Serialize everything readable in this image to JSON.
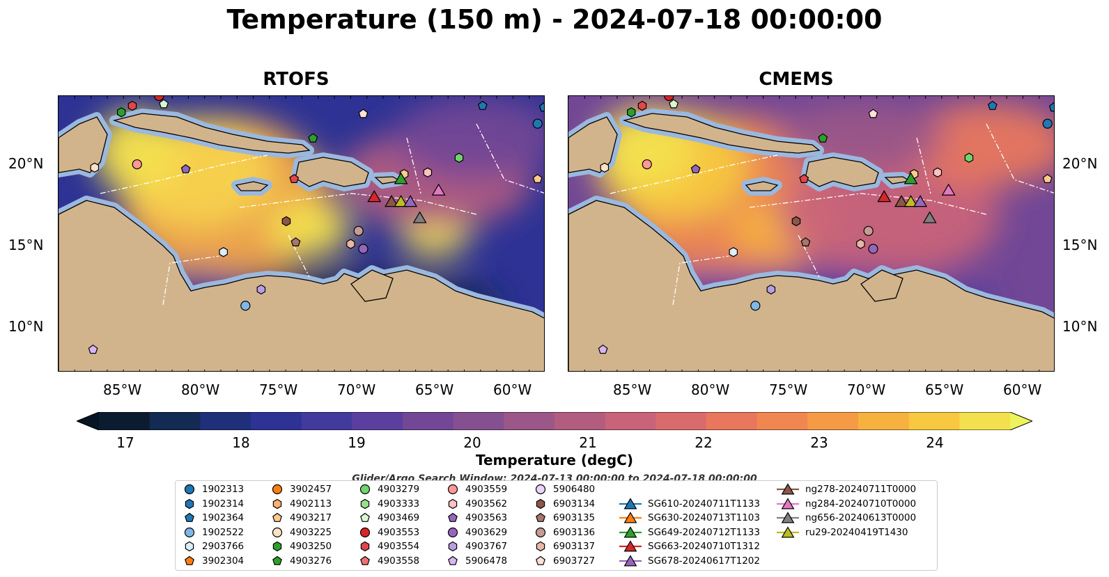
{
  "title": "Temperature (150 m) - 2024-07-18 00:00:00",
  "panels": [
    {
      "title": "RTOFS"
    },
    {
      "title": "CMEMS"
    }
  ],
  "axes": {
    "x_ticks": [
      "85°W",
      "80°W",
      "75°W",
      "70°W",
      "65°W",
      "60°W"
    ],
    "y_ticks": [
      "20°N",
      "15°N",
      "10°N"
    ]
  },
  "colorbar": {
    "label": "Temperature (degC)",
    "ticks": [
      "17",
      "18",
      "19",
      "20",
      "21",
      "22",
      "23",
      "24"
    ],
    "range": [
      16.5,
      24.5
    ],
    "colors": [
      "#0b1c30",
      "#132a52",
      "#1f2f7a",
      "#2d3294",
      "#433a9e",
      "#5a3f9f",
      "#714796",
      "#85508f",
      "#9b5788",
      "#b25d7f",
      "#c8637a",
      "#da6b6c",
      "#e8775e",
      "#f08751",
      "#f59b46",
      "#f7b13f",
      "#f7c840",
      "#f3e04e"
    ],
    "extend_low": "#061424",
    "extend_high": "#eef25c"
  },
  "search_window": "Glider/Argo Search Window: 2024-07-13 00:00:00 to 2024-07-18 00:00:00",
  "legend": {
    "floats": [
      {
        "id": "1902313",
        "color": "#1f77b4",
        "marker": "circle"
      },
      {
        "id": "1902314",
        "color": "#1f77b4",
        "marker": "hexagon"
      },
      {
        "id": "1902364",
        "color": "#1f77b4",
        "marker": "pentagon"
      },
      {
        "id": "1902522",
        "color": "#7fb8e6",
        "marker": "circle"
      },
      {
        "id": "2903766",
        "color": "#dbeefa",
        "marker": "hexagon"
      },
      {
        "id": "3902304",
        "color": "#ff7f0e",
        "marker": "pentagon"
      },
      {
        "id": "3902457",
        "color": "#ff7f0e",
        "marker": "circle"
      },
      {
        "id": "4902113",
        "color": "#ffb06b",
        "marker": "hexagon"
      },
      {
        "id": "4903217",
        "color": "#ffc98f",
        "marker": "pentagon"
      },
      {
        "id": "4903225",
        "color": "#ffe2c4",
        "marker": "circle"
      },
      {
        "id": "4903250",
        "color": "#2ca02c",
        "marker": "hexagon"
      },
      {
        "id": "4903276",
        "color": "#2ca02c",
        "marker": "pentagon"
      },
      {
        "id": "4903279",
        "color": "#6fd56f",
        "marker": "circle"
      },
      {
        "id": "4903333",
        "color": "#98df8a",
        "marker": "hexagon"
      },
      {
        "id": "4903469",
        "color": "#d9f5d0",
        "marker": "pentagon"
      },
      {
        "id": "4903553",
        "color": "#d62728",
        "marker": "circle"
      },
      {
        "id": "4903554",
        "color": "#e0474a",
        "marker": "hexagon"
      },
      {
        "id": "4903558",
        "color": "#f07070",
        "marker": "pentagon"
      },
      {
        "id": "4903559",
        "color": "#ff9896",
        "marker": "circle"
      },
      {
        "id": "4903562",
        "color": "#ffc2c0",
        "marker": "hexagon"
      },
      {
        "id": "4903563",
        "color": "#9467bd",
        "marker": "pentagon"
      },
      {
        "id": "4903629",
        "color": "#9467bd",
        "marker": "circle"
      },
      {
        "id": "4903767",
        "color": "#b89ee0",
        "marker": "hexagon"
      },
      {
        "id": "5906478",
        "color": "#d7b5f0",
        "marker": "pentagon"
      },
      {
        "id": "5906480",
        "color": "#e9d4f7",
        "marker": "circle"
      },
      {
        "id": "6903134",
        "color": "#8c564b",
        "marker": "hexagon"
      },
      {
        "id": "6903135",
        "color": "#a8766b",
        "marker": "pentagon"
      },
      {
        "id": "6903136",
        "color": "#c49c94",
        "marker": "circle"
      },
      {
        "id": "6903137",
        "color": "#e8b7a8",
        "marker": "hexagon"
      },
      {
        "id": "6903727",
        "color": "#fde0d6",
        "marker": "pentagon"
      }
    ],
    "gliders": [
      {
        "id": "SG610-20240711T1133",
        "color": "#1f77b4"
      },
      {
        "id": "SG630-20240713T1103",
        "color": "#ff7f0e"
      },
      {
        "id": "SG649-20240712T1133",
        "color": "#2ca02c"
      },
      {
        "id": "SG663-20240710T1312",
        "color": "#d62728"
      },
      {
        "id": "SG678-20240617T1202",
        "color": "#9467bd"
      },
      {
        "id": "ng278-20240711T0000",
        "color": "#8c564b"
      },
      {
        "id": "ng284-20240710T0000",
        "color": "#e377c2"
      },
      {
        "id": "ng656-20240613T0000",
        "color": "#7f7f7f"
      },
      {
        "id": "ru29-20240419T1430",
        "color": "#bcbd22"
      }
    ]
  },
  "map_extent": {
    "lon": [
      -89,
      -58
    ],
    "lat": [
      7,
      24
    ]
  },
  "markers": [
    {
      "lon": -85,
      "lat": 23.0,
      "color": "#2ca02c",
      "shape": "hexagon"
    },
    {
      "lon": -84.3,
      "lat": 23.4,
      "color": "#e0474a",
      "shape": "hexagon"
    },
    {
      "lon": -82.6,
      "lat": 24.0,
      "color": "#d62728",
      "shape": "circle"
    },
    {
      "lon": -82.3,
      "lat": 23.5,
      "color": "#d9f5d0",
      "shape": "pentagon"
    },
    {
      "lon": -72.8,
      "lat": 21.4,
      "color": "#2ca02c",
      "shape": "pentagon"
    },
    {
      "lon": -69.6,
      "lat": 22.9,
      "color": "#fde0d6",
      "shape": "pentagon"
    },
    {
      "lon": -62.0,
      "lat": 23.4,
      "color": "#1f77b4",
      "shape": "pentagon"
    },
    {
      "lon": -58.5,
      "lat": 22.3,
      "color": "#1f77b4",
      "shape": "circle"
    },
    {
      "lon": -58.1,
      "lat": 23.3,
      "color": "#1f77b4",
      "shape": "pentagon"
    },
    {
      "lon": -86.7,
      "lat": 19.6,
      "color": "#ffe2c4",
      "shape": "hexagon"
    },
    {
      "lon": -84.0,
      "lat": 19.8,
      "color": "#ff9896",
      "shape": "circle"
    },
    {
      "lon": -80.9,
      "lat": 19.5,
      "color": "#9467bd",
      "shape": "pentagon"
    },
    {
      "lon": -63.5,
      "lat": 20.2,
      "color": "#6fd56f",
      "shape": "hexagon"
    },
    {
      "lon": -58.5,
      "lat": 18.9,
      "color": "#ffc98f",
      "shape": "pentagon"
    },
    {
      "lon": -67.0,
      "lat": 19.2,
      "color": "#ffc98f",
      "shape": "hexagon"
    },
    {
      "lon": -65.5,
      "lat": 19.3,
      "color": "#ffc2c0",
      "shape": "hexagon"
    },
    {
      "lon": -74.0,
      "lat": 18.9,
      "color": "#e0474a",
      "shape": "pentagon"
    },
    {
      "lon": -74.5,
      "lat": 16.3,
      "color": "#8c564b",
      "shape": "hexagon"
    },
    {
      "lon": -73.9,
      "lat": 15.0,
      "color": "#a8766b",
      "shape": "pentagon"
    },
    {
      "lon": -78.5,
      "lat": 14.4,
      "color": "#dbeefa",
      "shape": "hexagon"
    },
    {
      "lon": -69.9,
      "lat": 15.7,
      "color": "#c49c94",
      "shape": "circle"
    },
    {
      "lon": -70.4,
      "lat": 14.9,
      "color": "#e8b7a8",
      "shape": "hexagon"
    },
    {
      "lon": -69.6,
      "lat": 14.6,
      "color": "#9467bd",
      "shape": "circle"
    },
    {
      "lon": -76.1,
      "lat": 12.1,
      "color": "#b89ee0",
      "shape": "hexagon"
    },
    {
      "lon": -77.1,
      "lat": 11.1,
      "color": "#7fb8e6",
      "shape": "circle"
    },
    {
      "lon": -86.8,
      "lat": 8.4,
      "color": "#d7b5f0",
      "shape": "pentagon"
    }
  ],
  "gliders_on_map": [
    {
      "lon": -67.2,
      "lat": 18.9,
      "color": "#2ca02c"
    },
    {
      "lon": -68.9,
      "lat": 17.8,
      "color": "#d62728"
    },
    {
      "lon": -67.8,
      "lat": 17.5,
      "color": "#8c564b"
    },
    {
      "lon": -67.2,
      "lat": 17.5,
      "color": "#bcbd22"
    },
    {
      "lon": -66.6,
      "lat": 17.5,
      "color": "#9467bd"
    },
    {
      "lon": -64.8,
      "lat": 18.2,
      "color": "#e377c2"
    },
    {
      "lon": -66.0,
      "lat": 16.5,
      "color": "#7f7f7f"
    }
  ]
}
